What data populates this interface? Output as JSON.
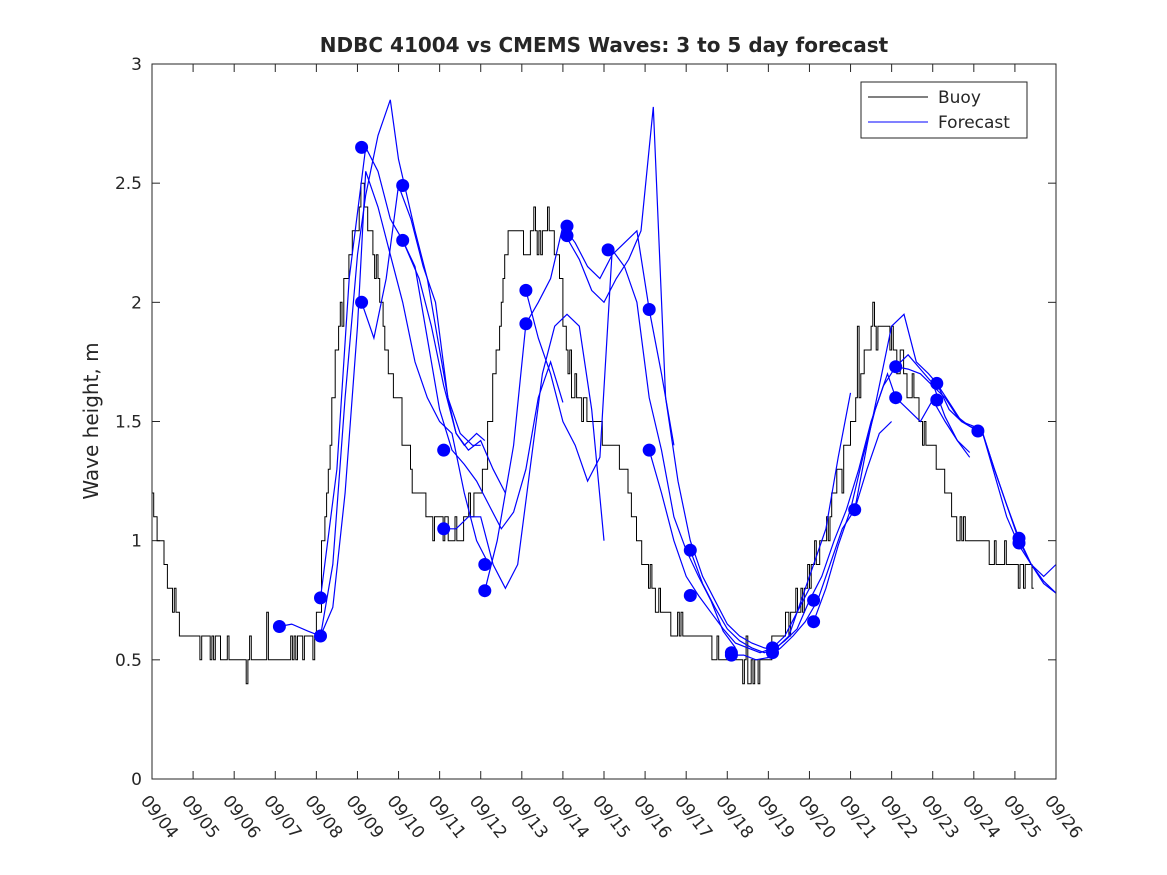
{
  "chart_data": {
    "type": "line",
    "title": "NDBC 41004 vs CMEMS Waves: 3 to 5 day forecast",
    "xlabel": "",
    "ylabel": "Wave height, m",
    "xlim_days": [
      4,
      26
    ],
    "ylim": [
      0,
      3
    ],
    "yticks": [
      0,
      0.5,
      1,
      1.5,
      2,
      2.5,
      3
    ],
    "xtick_labels": [
      "09/04",
      "09/05",
      "09/06",
      "09/07",
      "09/08",
      "09/09",
      "09/10",
      "09/11",
      "09/12",
      "09/13",
      "09/14",
      "09/15",
      "09/16",
      "09/17",
      "09/18",
      "09/19",
      "09/20",
      "09/21",
      "09/22",
      "09/23",
      "09/24",
      "09/25",
      "09/26"
    ],
    "legend": {
      "location": "top-right",
      "entries": [
        "Buoy",
        "Forecast"
      ]
    },
    "colors": {
      "buoy": "#000000",
      "forecast": "#0000ff",
      "axis": "#262626"
    },
    "buoy": {
      "name": "Buoy",
      "day_values": [
        4.0,
        4.1,
        4.3,
        4.5,
        4.7,
        4.9,
        5.1,
        5.5,
        6.0,
        6.5,
        7.0,
        7.5,
        7.9,
        8.1,
        8.2,
        8.4,
        8.6,
        8.9,
        9.1,
        9.3,
        9.5,
        9.7,
        10.0,
        10.3,
        10.6,
        10.8,
        11.0,
        11.2,
        11.4,
        11.6,
        11.8,
        12.0,
        12.2,
        12.5,
        12.7,
        12.9,
        13.1,
        13.3,
        13.6,
        13.9,
        14.1,
        14.3,
        14.5,
        14.7,
        14.9,
        15.1,
        15.3,
        15.5,
        15.7,
        15.9,
        16.1,
        16.3,
        16.5,
        16.7,
        17.0,
        17.3,
        17.6,
        17.9,
        18.2,
        18.6,
        19.0,
        19.3,
        19.6,
        19.9,
        20.2,
        20.5,
        20.8,
        21.0,
        21.3,
        21.6,
        21.9,
        22.2,
        22.5,
        22.8,
        23.1,
        23.4,
        23.7,
        24.0,
        24.3,
        24.6,
        24.9,
        25.2,
        25.5
      ],
      "values": [
        1.25,
        1.1,
        0.9,
        0.75,
        0.65,
        0.6,
        0.6,
        0.55,
        0.5,
        0.55,
        0.5,
        0.55,
        0.55,
        0.75,
        1.1,
        1.6,
        2.0,
        2.3,
        2.45,
        2.3,
        2.1,
        1.8,
        1.55,
        1.3,
        1.15,
        1.05,
        1.05,
        1.05,
        1.05,
        1.1,
        1.15,
        1.2,
        1.5,
        2.0,
        2.3,
        2.3,
        2.2,
        2.3,
        2.3,
        2.15,
        1.8,
        1.6,
        1.55,
        1.5,
        1.5,
        1.4,
        1.4,
        1.25,
        1.1,
        0.95,
        0.85,
        0.75,
        0.7,
        0.65,
        0.6,
        0.6,
        0.55,
        0.5,
        0.5,
        0.45,
        0.55,
        0.6,
        0.7,
        0.8,
        0.95,
        1.1,
        1.3,
        1.5,
        1.75,
        1.9,
        1.9,
        1.75,
        1.6,
        1.45,
        1.3,
        1.15,
        1.05,
        1.0,
        0.95,
        0.9,
        0.9,
        0.85,
        0.85
      ],
      "noise_amplitude_m": 0.05
    },
    "forecast_series": [
      {
        "name": "Forecast",
        "x": [
          7.1,
          7.4,
          7.8,
          8.1,
          8.4,
          8.7,
          9.0,
          9.2,
          9.5,
          9.8,
          10.1,
          10.4,
          10.7,
          11.0,
          11.3,
          11.6,
          11.9,
          12.2
        ],
        "y": [
          0.64,
          0.65,
          0.62,
          0.6,
          0.72,
          1.2,
          1.9,
          2.55,
          2.4,
          2.2,
          2.0,
          1.75,
          1.6,
          1.5,
          1.45,
          1.2,
          1.0,
          0.9
        ]
      },
      {
        "name": "Forecast",
        "x": [
          8.1,
          8.5,
          8.8,
          9.2,
          9.5,
          9.8,
          10.1,
          10.5,
          10.8,
          11.1,
          11.4,
          11.7,
          12.0,
          12.3,
          12.6
        ],
        "y": [
          0.76,
          1.3,
          2.1,
          2.65,
          2.55,
          2.35,
          2.26,
          2.1,
          1.9,
          1.65,
          1.45,
          1.38,
          1.42,
          1.3,
          1.2
        ]
      },
      {
        "name": "Forecast",
        "x": [
          8.1,
          8.4,
          8.7,
          9.0,
          9.2,
          9.5,
          9.8,
          10.0,
          10.2,
          10.4,
          10.7,
          11.0,
          11.2,
          11.5,
          11.8,
          12.0
        ],
        "y": [
          0.6,
          0.9,
          1.6,
          2.2,
          2.45,
          2.7,
          2.85,
          2.6,
          2.45,
          2.3,
          2.1,
          1.8,
          1.6,
          1.45,
          1.4,
          1.4
        ]
      },
      {
        "name": "Forecast",
        "x": [
          9.1,
          9.4,
          9.7,
          10.0,
          10.3,
          10.6,
          10.9,
          11.2,
          11.4,
          11.6,
          11.9,
          12.1
        ],
        "y": [
          2.0,
          1.85,
          2.1,
          2.49,
          2.35,
          2.15,
          2.0,
          1.6,
          1.45,
          1.4,
          1.45,
          1.42
        ]
      },
      {
        "name": "Forecast",
        "x": [
          10.1,
          10.4,
          10.7,
          11.0,
          11.3,
          11.6,
          11.9,
          12.2,
          12.5,
          12.8,
          13.1,
          13.4,
          13.7,
          14.0
        ],
        "y": [
          2.26,
          2.15,
          1.85,
          1.55,
          1.38,
          1.32,
          1.25,
          1.15,
          1.05,
          1.12,
          1.3,
          1.6,
          1.75,
          1.58
        ]
      },
      {
        "name": "Forecast",
        "x": [
          11.1,
          11.4,
          11.7,
          12.0,
          12.3,
          12.6,
          12.9,
          13.2,
          13.5,
          13.8,
          14.1,
          14.4,
          14.7,
          15.0
        ],
        "y": [
          1.05,
          1.05,
          1.1,
          1.1,
          0.9,
          0.8,
          0.9,
          1.3,
          1.7,
          1.9,
          1.95,
          1.9,
          1.55,
          1.0
        ]
      },
      {
        "name": "Forecast",
        "x": [
          12.1,
          12.4,
          12.8,
          13.1,
          13.4,
          13.7,
          14.0,
          14.3,
          14.6,
          14.9,
          15.2,
          15.5,
          15.8,
          16.1,
          16.4,
          16.7
        ],
        "y": [
          0.79,
          1.0,
          1.4,
          1.91,
          2.0,
          2.1,
          2.32,
          2.25,
          2.15,
          2.1,
          2.2,
          2.25,
          2.3,
          1.97,
          1.7,
          1.4
        ]
      },
      {
        "name": "Forecast",
        "x": [
          13.1,
          13.4,
          13.7,
          14.0,
          14.3,
          14.6,
          14.9,
          15.2,
          15.5,
          15.8,
          16.1,
          16.4,
          16.7,
          17.0,
          17.3,
          17.6,
          17.9,
          18.2
        ],
        "y": [
          2.05,
          1.85,
          1.7,
          1.5,
          1.4,
          1.25,
          1.35,
          2.22,
          2.15,
          2.0,
          1.6,
          1.38,
          1.1,
          0.96,
          0.85,
          0.75,
          0.62,
          0.55
        ]
      },
      {
        "name": "Forecast",
        "x": [
          14.1,
          14.4,
          14.7,
          15.0,
          15.3,
          15.6,
          15.9,
          16.2,
          16.5,
          16.8,
          17.1,
          17.4,
          17.7,
          18.0,
          18.3,
          18.6,
          18.9,
          19.2
        ],
        "y": [
          2.27,
          2.18,
          2.05,
          2.0,
          2.1,
          2.18,
          2.3,
          2.82,
          1.6,
          1.25,
          1.0,
          0.85,
          0.75,
          0.65,
          0.6,
          0.57,
          0.55,
          0.54
        ]
      },
      {
        "name": "Forecast",
        "x": [
          16.1,
          16.4,
          16.7,
          17.0,
          17.3,
          17.6,
          17.9,
          18.2,
          18.5,
          18.8,
          19.1,
          19.4,
          19.7,
          20.0
        ],
        "y": [
          1.38,
          1.2,
          1.0,
          0.85,
          0.77,
          0.7,
          0.63,
          0.57,
          0.55,
          0.53,
          0.55,
          0.6,
          0.7,
          0.8
        ]
      },
      {
        "name": "Forecast",
        "x": [
          17.1,
          17.4,
          17.7,
          18.0,
          18.3,
          18.6,
          18.9,
          19.2,
          19.5,
          19.8,
          20.1,
          20.4,
          20.7,
          21.0
        ],
        "y": [
          0.96,
          0.82,
          0.72,
          0.63,
          0.58,
          0.55,
          0.53,
          0.55,
          0.6,
          0.75,
          0.9,
          1.05,
          1.35,
          1.62
        ]
      },
      {
        "name": "Forecast",
        "x": [
          18.1,
          18.4,
          18.7,
          19.0,
          19.3,
          19.6,
          19.9,
          20.2,
          20.5,
          20.8,
          21.1,
          21.4,
          21.7,
          22.0
        ],
        "y": [
          0.52,
          0.52,
          0.5,
          0.51,
          0.55,
          0.6,
          0.66,
          0.75,
          0.9,
          1.05,
          1.13,
          1.3,
          1.45,
          1.5
        ]
      },
      {
        "name": "Forecast",
        "x": [
          19.1,
          19.4,
          19.7,
          20.0,
          20.3,
          20.6,
          20.9,
          21.2,
          21.5,
          21.8,
          22.1,
          22.4,
          22.7,
          23.0,
          23.3,
          23.6,
          23.9
        ],
        "y": [
          0.54,
          0.58,
          0.63,
          0.75,
          0.85,
          1.0,
          1.13,
          1.3,
          1.5,
          1.65,
          1.73,
          1.78,
          1.72,
          1.66,
          1.52,
          1.42,
          1.37
        ]
      },
      {
        "name": "Forecast",
        "x": [
          20.1,
          20.4,
          20.7,
          21.0,
          21.3,
          21.6,
          21.9,
          22.1,
          22.4,
          22.7,
          23.0,
          23.3,
          23.6,
          23.9
        ],
        "y": [
          0.66,
          0.8,
          0.98,
          1.13,
          1.35,
          1.55,
          1.7,
          1.6,
          1.55,
          1.5,
          1.59,
          1.5,
          1.42,
          1.35
        ]
      },
      {
        "name": "Forecast",
        "x": [
          21.1,
          21.4,
          21.7,
          22.0,
          22.3,
          22.6,
          22.9,
          23.1,
          23.4,
          23.7,
          24.0,
          24.2,
          24.5,
          24.8,
          25.1,
          25.4,
          25.7,
          26.0
        ],
        "y": [
          1.13,
          1.4,
          1.65,
          1.9,
          1.95,
          1.75,
          1.7,
          1.66,
          1.55,
          1.5,
          1.48,
          1.46,
          1.3,
          1.15,
          1.01,
          0.9,
          0.85,
          0.9
        ]
      },
      {
        "name": "Forecast",
        "x": [
          22.1,
          22.4,
          22.7,
          23.0,
          23.3,
          23.6,
          23.9,
          24.2,
          24.5,
          24.8,
          25.1,
          25.4,
          25.7,
          26.0
        ],
        "y": [
          1.73,
          1.72,
          1.7,
          1.65,
          1.6,
          1.52,
          1.48,
          1.46,
          1.28,
          1.1,
          0.98,
          0.9,
          0.82,
          0.78
        ]
      },
      {
        "name": "Forecast",
        "x": [
          23.1,
          23.4,
          23.7,
          24.0,
          24.2,
          24.5,
          24.8,
          25.1,
          25.4,
          25.7,
          26.0
        ],
        "y": [
          1.66,
          1.58,
          1.5,
          1.47,
          1.46,
          1.3,
          1.15,
          1.0,
          0.9,
          0.83,
          0.78
        ]
      }
    ],
    "forecast_markers": [
      {
        "x": 7.1,
        "y": 0.64
      },
      {
        "x": 8.1,
        "y": 0.76
      },
      {
        "x": 8.1,
        "y": 0.6
      },
      {
        "x": 9.1,
        "y": 2.65
      },
      {
        "x": 9.1,
        "y": 2.0
      },
      {
        "x": 10.1,
        "y": 2.49
      },
      {
        "x": 10.1,
        "y": 2.26
      },
      {
        "x": 11.1,
        "y": 1.38
      },
      {
        "x": 11.1,
        "y": 1.05
      },
      {
        "x": 12.1,
        "y": 0.9
      },
      {
        "x": 12.1,
        "y": 0.79
      },
      {
        "x": 13.1,
        "y": 2.05
      },
      {
        "x": 13.1,
        "y": 1.91
      },
      {
        "x": 14.1,
        "y": 2.32
      },
      {
        "x": 14.1,
        "y": 2.28
      },
      {
        "x": 15.1,
        "y": 2.22
      },
      {
        "x": 16.1,
        "y": 1.97
      },
      {
        "x": 16.1,
        "y": 1.38
      },
      {
        "x": 17.1,
        "y": 0.96
      },
      {
        "x": 17.1,
        "y": 0.77
      },
      {
        "x": 18.1,
        "y": 0.53
      },
      {
        "x": 18.1,
        "y": 0.52
      },
      {
        "x": 19.1,
        "y": 0.55
      },
      {
        "x": 19.1,
        "y": 0.53
      },
      {
        "x": 20.1,
        "y": 0.75
      },
      {
        "x": 20.1,
        "y": 0.66
      },
      {
        "x": 21.1,
        "y": 1.13
      },
      {
        "x": 22.1,
        "y": 1.73
      },
      {
        "x": 22.1,
        "y": 1.6
      },
      {
        "x": 23.1,
        "y": 1.66
      },
      {
        "x": 23.1,
        "y": 1.59
      },
      {
        "x": 24.1,
        "y": 1.46
      },
      {
        "x": 25.1,
        "y": 1.01
      },
      {
        "x": 25.1,
        "y": 0.99
      }
    ]
  }
}
